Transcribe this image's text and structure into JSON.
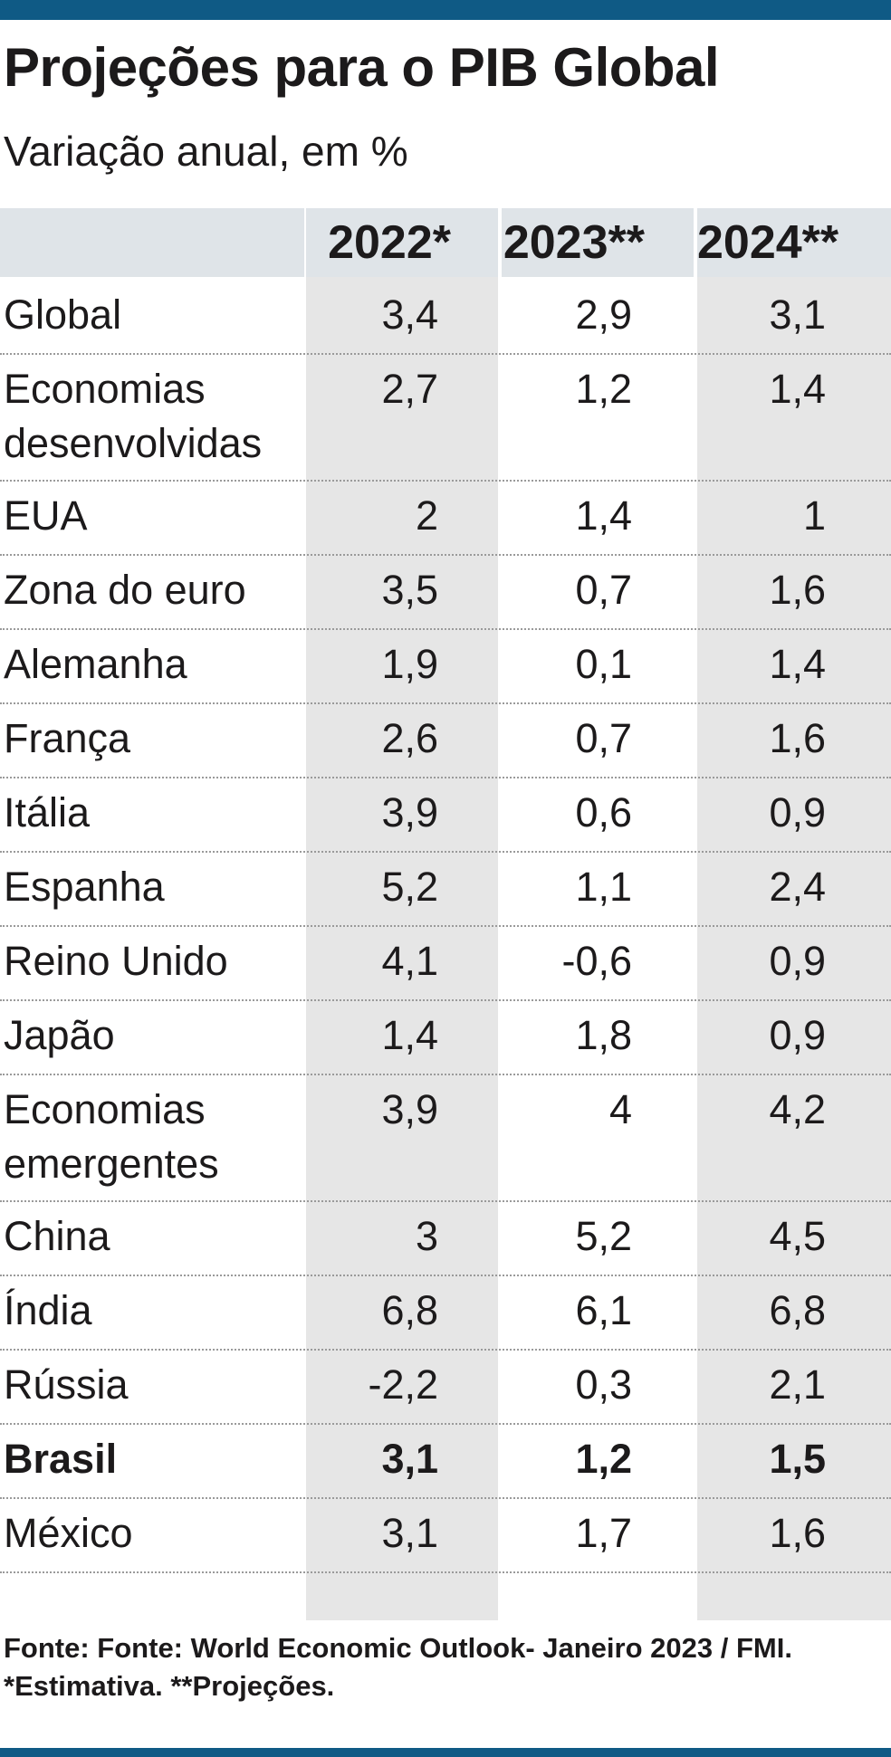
{
  "header": {
    "title": "Projeções para o PIB Global",
    "subtitle": "Variação anual, em %"
  },
  "chart_data": {
    "type": "table",
    "title": "Projeções para o PIB Global",
    "subtitle": "Variação anual, em %",
    "columns": [
      "2022*",
      "2023**",
      "2024**"
    ],
    "rows": [
      {
        "label": "Global",
        "values": [
          "3,4",
          "2,9",
          "3,1"
        ]
      },
      {
        "label": "Economias desenvolvidas",
        "values": [
          "2,7",
          "1,2",
          "1,4"
        ]
      },
      {
        "label": "EUA",
        "values": [
          "2",
          "1,4",
          "1"
        ]
      },
      {
        "label": "Zona do euro",
        "values": [
          "3,5",
          "0,7",
          "1,6"
        ]
      },
      {
        "label": "Alemanha",
        "values": [
          "1,9",
          "0,1",
          "1,4"
        ]
      },
      {
        "label": "França",
        "values": [
          "2,6",
          "0,7",
          "1,6"
        ]
      },
      {
        "label": "Itália",
        "values": [
          "3,9",
          "0,6",
          "0,9"
        ]
      },
      {
        "label": "Espanha",
        "values": [
          "5,2",
          "1,1",
          "2,4"
        ]
      },
      {
        "label": "Reino Unido",
        "values": [
          "4,1",
          "-0,6",
          "0,9"
        ]
      },
      {
        "label": "Japão",
        "values": [
          "1,4",
          "1,8",
          "0,9"
        ]
      },
      {
        "label": "Economias emergentes",
        "values": [
          "3,9",
          "4",
          "4,2"
        ]
      },
      {
        "label": "China",
        "values": [
          "3",
          "5,2",
          "4,5"
        ]
      },
      {
        "label": "Índia",
        "values": [
          "6,8",
          "6,1",
          "6,8"
        ]
      },
      {
        "label": "Rússia",
        "values": [
          "-2,2",
          "0,3",
          "2,1"
        ]
      },
      {
        "label": "Brasil",
        "values": [
          "3,1",
          "1,2",
          "1,5"
        ],
        "bold": true
      },
      {
        "label": "México",
        "values": [
          "3,1",
          "1,7",
          "1,6"
        ]
      }
    ]
  },
  "footer": {
    "source": "Fonte: Fonte: World Economic Outlook- Janeiro 2023 / FMI.",
    "note": "*Estimativa. **Projeções."
  },
  "colors": {
    "brand_bar": "#0f5a85",
    "header_bg": "#dfe4e8",
    "column_shade": "#e6e6e6",
    "text": "#1c1a1b"
  }
}
